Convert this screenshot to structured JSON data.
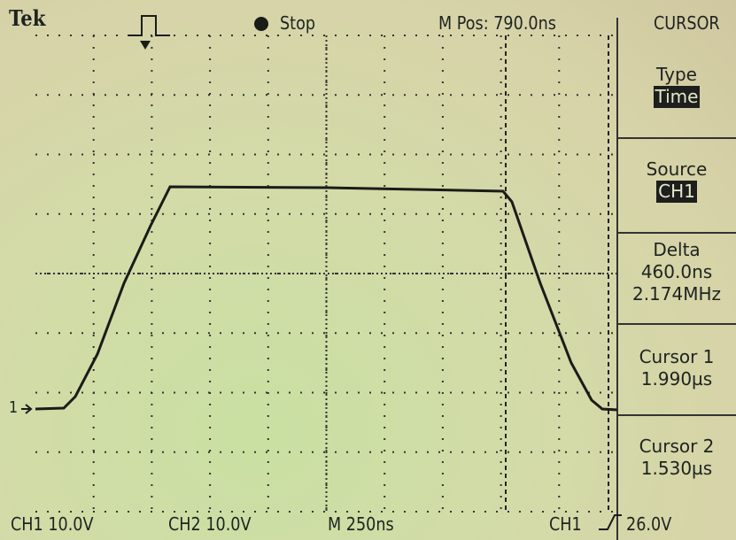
{
  "header": {
    "brand": "Tek",
    "run_state": "Stop",
    "position": "M Pos: 790.0ns",
    "menu_title": "CURSOR"
  },
  "menu": [
    {
      "label": "Type",
      "value": "Time"
    },
    {
      "label": "Source",
      "value": "CH1"
    },
    {
      "label": "Delta",
      "lines": [
        "460.0ns",
        "2.174MHz"
      ]
    },
    {
      "label": "Cursor 1",
      "lines": [
        "1.990µs"
      ]
    },
    {
      "label": "Cursor 2",
      "lines": [
        "1.530µs"
      ]
    }
  ],
  "marker": "1",
  "footer": {
    "ch1": "CH1 10.0V",
    "ch2": "CH2 10.0V",
    "timebase": "M 250ns",
    "trigger_source": "CH1",
    "trigger_level": "26.0V"
  }
}
